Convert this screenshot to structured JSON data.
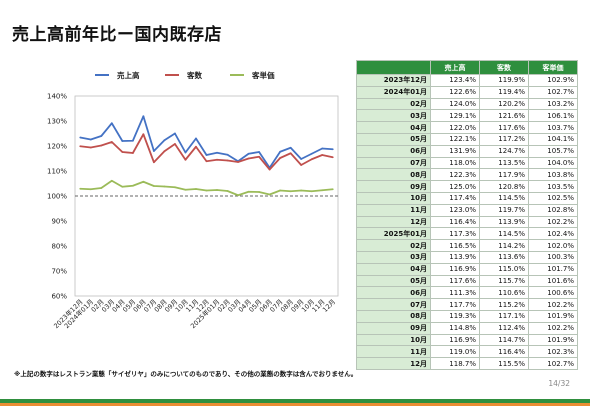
{
  "title": "売上高前年比ー国内既存店",
  "footnote": "※上記の数字はレストラン業態「サイゼリヤ」のみについてのものであり、その他の業態の数字は含んでおりません。",
  "page_number": "14/32",
  "colors": {
    "sales": "#4472c4",
    "customers": "#c0504d",
    "unit_price": "#9bbb59",
    "header_bg": "#2f8f3e",
    "label_bg": "#d8ecd5"
  },
  "table": {
    "headers": [
      "",
      "売上高",
      "客数",
      "客単価"
    ],
    "rows": [
      [
        "2023年12月",
        "123.4%",
        "119.9%",
        "102.9%"
      ],
      [
        "2024年01月",
        "122.6%",
        "119.4%",
        "102.7%"
      ],
      [
        "02月",
        "124.0%",
        "120.2%",
        "103.2%"
      ],
      [
        "03月",
        "129.1%",
        "121.6%",
        "106.1%"
      ],
      [
        "04月",
        "122.0%",
        "117.6%",
        "103.7%"
      ],
      [
        "05月",
        "122.1%",
        "117.2%",
        "104.1%"
      ],
      [
        "06月",
        "131.9%",
        "124.7%",
        "105.7%"
      ],
      [
        "07月",
        "118.0%",
        "113.5%",
        "104.0%"
      ],
      [
        "08月",
        "122.3%",
        "117.9%",
        "103.8%"
      ],
      [
        "09月",
        "125.0%",
        "120.8%",
        "103.5%"
      ],
      [
        "10月",
        "117.4%",
        "114.5%",
        "102.5%"
      ],
      [
        "11月",
        "123.0%",
        "119.7%",
        "102.8%"
      ],
      [
        "12月",
        "116.4%",
        "113.9%",
        "102.2%"
      ],
      [
        "2025年01月",
        "117.3%",
        "114.5%",
        "102.4%"
      ],
      [
        "02月",
        "116.5%",
        "114.2%",
        "102.0%"
      ],
      [
        "03月",
        "113.9%",
        "113.6%",
        "100.3%"
      ],
      [
        "04月",
        "116.9%",
        "115.0%",
        "101.7%"
      ],
      [
        "05月",
        "117.6%",
        "115.7%",
        "101.6%"
      ],
      [
        "06月",
        "111.3%",
        "110.6%",
        "100.6%"
      ],
      [
        "07月",
        "117.7%",
        "115.2%",
        "102.2%"
      ],
      [
        "08月",
        "119.3%",
        "117.1%",
        "101.9%"
      ],
      [
        "09月",
        "114.8%",
        "112.4%",
        "102.2%"
      ],
      [
        "10月",
        "116.9%",
        "114.7%",
        "101.9%"
      ],
      [
        "11月",
        "119.0%",
        "116.4%",
        "102.3%"
      ],
      [
        "12月",
        "118.7%",
        "115.5%",
        "102.7%"
      ]
    ]
  },
  "chart_data": {
    "type": "line",
    "categories": [
      "2023年12月",
      "2024年01月",
      "02月",
      "03月",
      "04月",
      "05月",
      "06月",
      "07月",
      "08月",
      "09月",
      "10月",
      "11月",
      "12月",
      "2025年01月",
      "02月",
      "03月",
      "04月",
      "05月",
      "06月",
      "07月",
      "08月",
      "09月",
      "10月",
      "11月",
      "12月"
    ],
    "series": [
      {
        "name": "売上高",
        "color": "#4472c4",
        "values": [
          123.4,
          122.6,
          124.0,
          129.1,
          122.0,
          122.1,
          131.9,
          118.0,
          122.3,
          125.0,
          117.4,
          123.0,
          116.4,
          117.3,
          116.5,
          113.9,
          116.9,
          117.6,
          111.3,
          117.7,
          119.3,
          114.8,
          116.9,
          119.0,
          118.7
        ]
      },
      {
        "name": "客数",
        "color": "#c0504d",
        "values": [
          119.9,
          119.4,
          120.2,
          121.6,
          117.6,
          117.2,
          124.7,
          113.5,
          117.9,
          120.8,
          114.5,
          119.7,
          113.9,
          114.5,
          114.2,
          113.6,
          115.0,
          115.7,
          110.6,
          115.2,
          117.1,
          112.4,
          114.7,
          116.4,
          115.5
        ]
      },
      {
        "name": "客単価",
        "color": "#9bbb59",
        "values": [
          102.9,
          102.7,
          103.2,
          106.1,
          103.7,
          104.1,
          105.7,
          104.0,
          103.8,
          103.5,
          102.5,
          102.8,
          102.2,
          102.4,
          102.0,
          100.3,
          101.7,
          101.6,
          100.6,
          102.2,
          101.9,
          102.2,
          101.9,
          102.3,
          102.7
        ]
      }
    ],
    "ylim": [
      60,
      140
    ],
    "yticks": [
      "60%",
      "70%",
      "80%",
      "90%",
      "100%",
      "110%",
      "120%",
      "130%",
      "140%"
    ],
    "reference_line": 100,
    "grid": false,
    "legend_position": "top"
  }
}
